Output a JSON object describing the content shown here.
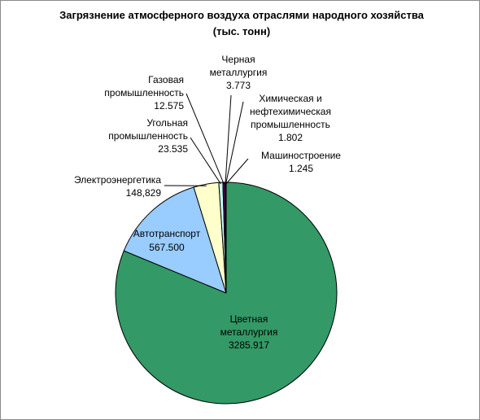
{
  "chart_data": {
    "type": "pie",
    "title": "Загрязнение атмосферного воздуха отраслями народного хозяйства",
    "subtitle": "(тыс. тонн)",
    "slices": [
      {
        "name": "Цветная металлургия",
        "value": 3285.917,
        "label": "3285.917",
        "color": "#339966"
      },
      {
        "name": "Автотранспорт",
        "value": 567.5,
        "label": "567.500",
        "color": "#99ccff"
      },
      {
        "name": "Электроэнергетика",
        "value": 148.829,
        "label": "148,829",
        "color": "#ffffcc"
      },
      {
        "name": "Угольная промышленность",
        "value": 23.535,
        "label": "23.535",
        "color": "#ccffff"
      },
      {
        "name": "Газовая промышленность",
        "value": 12.575,
        "label": "12.575",
        "color": "#660066"
      },
      {
        "name": "Черная металлургия",
        "value": 3.773,
        "label": "3.773",
        "color": "#ff8080"
      },
      {
        "name": "Химическая и нефтехимическая промышленность",
        "value": 1.802,
        "label": "1.802",
        "color": "#0066cc"
      },
      {
        "name": "Машиностроение",
        "value": 1.245,
        "label": "1.245",
        "color": "#ccccff"
      }
    ],
    "label_lines": [
      [
        "Цветная",
        "металлургия",
        "3285.917"
      ],
      [
        "Автотранспорт",
        "567.500"
      ],
      [
        "Электроэнергетика",
        "148,829"
      ],
      [
        "Угольная",
        "промышленность",
        "23.535"
      ],
      [
        "Газовая",
        "промышленность",
        "12.575"
      ],
      [
        "Черная",
        "металлургия",
        "3.773"
      ],
      [
        "Химическая и",
        "нефтехимическая",
        "промышленность",
        "1.802"
      ],
      [
        "Машиностроение",
        "1.245"
      ]
    ],
    "legend": false
  }
}
